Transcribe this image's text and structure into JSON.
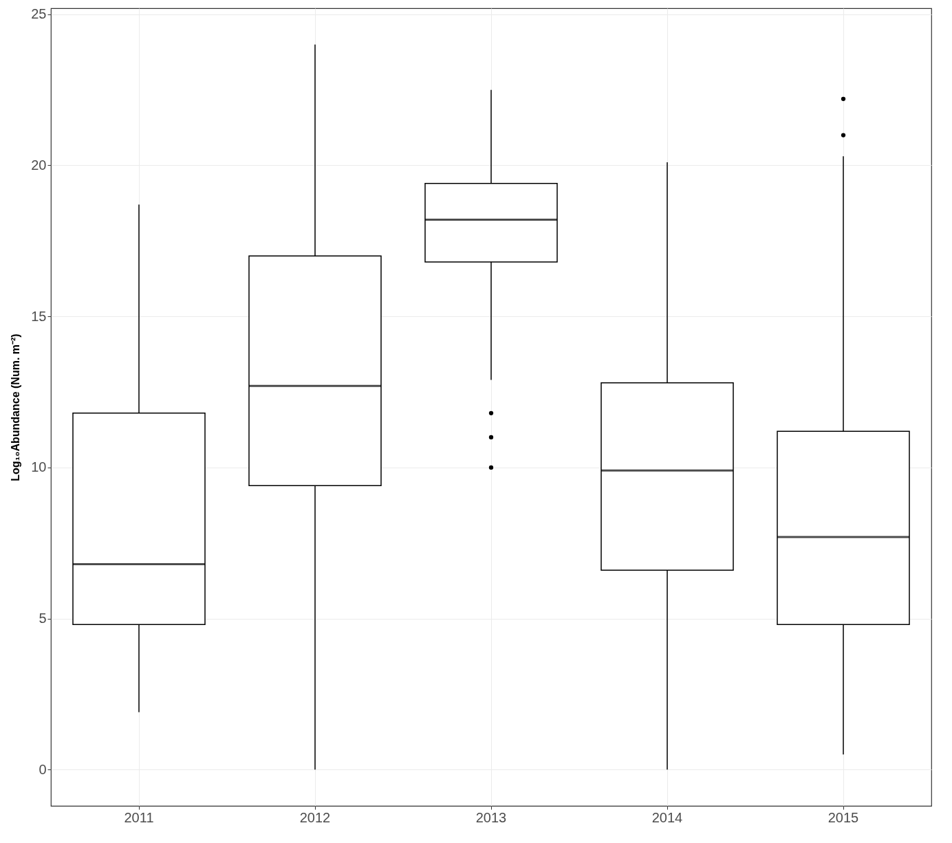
{
  "chart_data": {
    "type": "box",
    "ylabel": "Log₁₀Abundance (Num. m⁻²)",
    "categories": [
      "2011",
      "2012",
      "2013",
      "2014",
      "2015"
    ],
    "boxes": [
      {
        "low": 1.9,
        "q1": 4.8,
        "median": 6.8,
        "q3": 11.8,
        "high": 18.7
      },
      {
        "low": 0,
        "q1": 9.4,
        "median": 12.7,
        "q3": 17.0,
        "high": 24.0
      },
      {
        "low": 12.9,
        "q1": 16.8,
        "median": 18.2,
        "q3": 19.4,
        "high": 22.5,
        "outliers": [
          11.8,
          11.0,
          10.0
        ]
      },
      {
        "low": 0,
        "q1": 6.6,
        "median": 9.9,
        "q3": 12.8,
        "high": 20.1
      },
      {
        "low": 0.5,
        "q1": 4.8,
        "median": 7.7,
        "q3": 11.2,
        "high": 20.3,
        "outliers": [
          22.2,
          21.0
        ]
      }
    ],
    "ylim": [
      -1.2,
      25.2
    ],
    "yticks": [
      0,
      5,
      10,
      15,
      20,
      25
    ],
    "grid": true
  }
}
